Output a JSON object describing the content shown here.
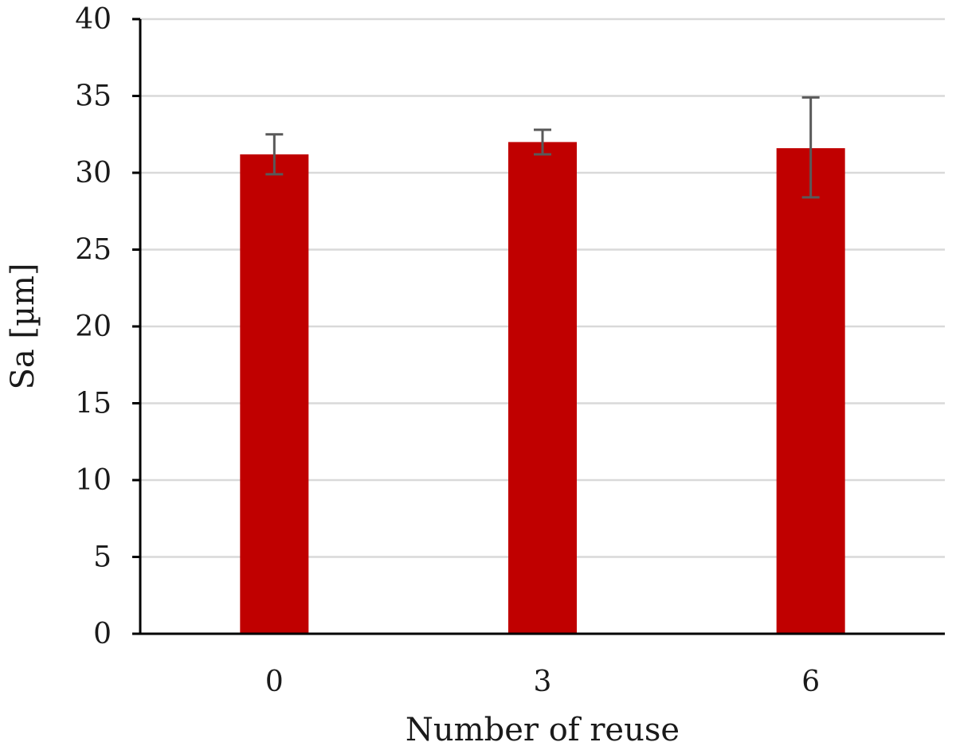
{
  "chart_data": {
    "type": "bar",
    "title": "",
    "xlabel": "Number of reuse",
    "ylabel": "Sa [µm]",
    "categories": [
      "0",
      "3",
      "6"
    ],
    "values": [
      31.2,
      32.0,
      31.6
    ],
    "error_low": [
      29.9,
      31.2,
      28.4
    ],
    "error_high": [
      32.5,
      32.8,
      34.9
    ],
    "ylim": [
      0,
      40
    ],
    "yticks": [
      "0",
      "5",
      "10",
      "15",
      "20",
      "25",
      "30",
      "35",
      "40"
    ],
    "grid": true,
    "legend": "none",
    "colors": {
      "bar": "#C00000",
      "error_bar": "#595959",
      "grid": "#D9D9D9",
      "axis": "#000000"
    }
  }
}
